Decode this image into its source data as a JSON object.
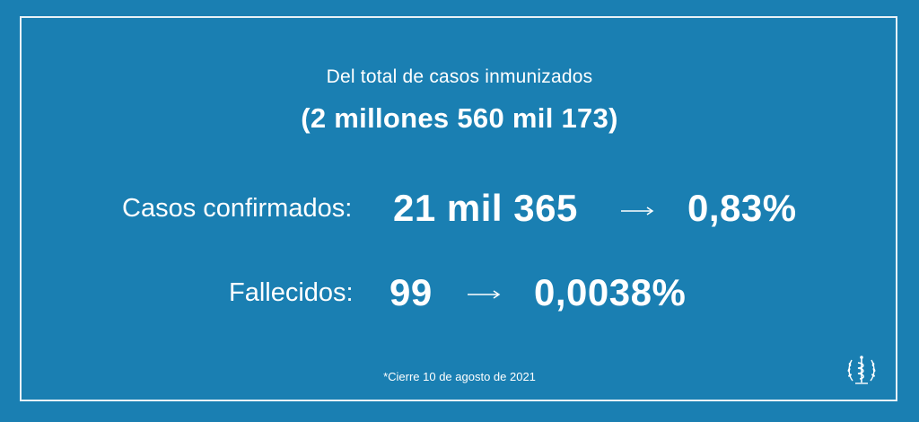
{
  "header": {
    "subtitle": "Del total de casos inmunizados",
    "total": "(2 millones 560 mil 173)"
  },
  "rows": [
    {
      "label": "Casos confirmados:",
      "count": "21 mil 365",
      "percent": "0,83%"
    },
    {
      "label": "Fallecidos:",
      "count": "99",
      "percent": "0,0038%"
    }
  ],
  "footnote": "*Cierre 10 de agosto de 2021",
  "colors": {
    "background": "#1a7fb2",
    "text": "#ffffff"
  },
  "icons": {
    "logo": "medical-emblem-icon",
    "arrow": "right-arrow-icon"
  }
}
